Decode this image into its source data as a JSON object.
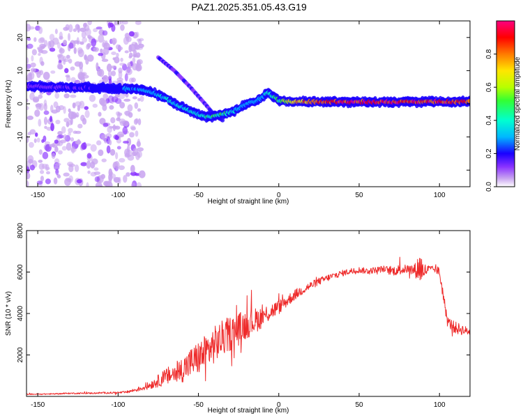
{
  "figure_title": "PAZ1.2025.351.05.43.G19",
  "chart_data": [
    {
      "type": "heatmap",
      "name": "spectrogram",
      "title": "PAZ1.2025.351.05.43.G19",
      "xlabel": "Height of straight line (km)",
      "ylabel": "Frequency (Hz)",
      "xlim": [
        -157,
        119
      ],
      "ylim": [
        -25,
        25
      ],
      "xticks": [
        -150,
        -100,
        -50,
        0,
        50,
        100
      ],
      "yticks": [
        -20,
        -10,
        0,
        10,
        20
      ],
      "colorbar": {
        "label": "Normalized spectral amplitude",
        "range": [
          0,
          1
        ],
        "ticks": [
          "0.0",
          "0.2",
          "0.4",
          "0.6",
          "0.8"
        ],
        "colors": [
          "#ffffff",
          "#c9a5f0",
          "#8a33ff",
          "#1a00ff",
          "#00b8ff",
          "#00ffd0",
          "#33ff33",
          "#b8ff00",
          "#ffe600",
          "#ff7a00",
          "#ff0000",
          "#ff0080"
        ]
      },
      "ridge": {
        "x": [
          -157,
          -140,
          -120,
          -100,
          -90,
          -80,
          -70,
          -60,
          -50,
          -44,
          -40,
          -36,
          -30,
          -25,
          -20,
          -15,
          -10,
          -7,
          -4,
          0,
          5,
          10,
          20,
          40,
          60,
          80,
          100,
          119
        ],
        "freq": [
          5.5,
          5.0,
          5.0,
          4.5,
          4.5,
          3.8,
          1.5,
          -1.0,
          -3.2,
          -4.0,
          -3.8,
          -3.3,
          -2.6,
          -1.5,
          0.0,
          0.6,
          2.0,
          3.5,
          2.5,
          1.0,
          0.8,
          0.6,
          0.6,
          0.6,
          0.6,
          0.6,
          0.6,
          0.6
        ],
        "amplitude": [
          0.2,
          0.22,
          0.25,
          0.3,
          0.35,
          0.38,
          0.42,
          0.45,
          0.45,
          0.48,
          0.52,
          0.55,
          0.45,
          0.38,
          0.38,
          0.4,
          0.4,
          0.45,
          0.5,
          0.55,
          0.65,
          0.75,
          0.88,
          0.95,
          0.95,
          0.95,
          0.95,
          0.92
        ]
      },
      "secondary_arc": {
        "x": [
          -75,
          -65,
          -55,
          -45,
          -40,
          -35
        ],
        "freq": [
          14.0,
          10.0,
          5.0,
          -0.5,
          -3.5,
          -5.0
        ]
      }
    },
    {
      "type": "line",
      "name": "snr",
      "title": "",
      "xlabel": "Height of straight line (km)",
      "ylabel": "SNR (10 * v/v)",
      "xlim": [
        -157,
        119
      ],
      "ylim": [
        0,
        8000
      ],
      "xticks": [
        -150,
        -100,
        -50,
        0,
        50,
        100
      ],
      "yticks": [
        2000,
        4000,
        6000,
        8000
      ],
      "color": "#ee2b2b",
      "x": [
        -157,
        -140,
        -130,
        -120,
        -110,
        -100,
        -95,
        -90,
        -85,
        -80,
        -75,
        -70,
        -65,
        -60,
        -55,
        -50,
        -45,
        -40,
        -35,
        -30,
        -25,
        -20,
        -15,
        -10,
        -5,
        0,
        5,
        10,
        15,
        20,
        25,
        30,
        35,
        40,
        45,
        50,
        55,
        60,
        65,
        70,
        75,
        80,
        85,
        88,
        90,
        95,
        98,
        100,
        105,
        110,
        115,
        119
      ],
      "y": [
        100,
        120,
        150,
        150,
        170,
        180,
        200,
        300,
        400,
        550,
        750,
        950,
        1100,
        1300,
        1600,
        1850,
        2150,
        2500,
        2800,
        3050,
        3250,
        3500,
        3650,
        3850,
        4100,
        4300,
        4600,
        4900,
        5150,
        5350,
        5550,
        5700,
        5850,
        5950,
        6050,
        6100,
        6050,
        6100,
        6150,
        6050,
        6100,
        6150,
        6100,
        6250,
        6050,
        6150,
        6100,
        6000,
        3600,
        3300,
        3200,
        3100
      ],
      "noise_amplitude": [
        25,
        30,
        35,
        35,
        40,
        45,
        60,
        90,
        130,
        200,
        300,
        420,
        520,
        620,
        750,
        820,
        880,
        900,
        880,
        850,
        800,
        720,
        620,
        520,
        420,
        350,
        300,
        260,
        230,
        200,
        180,
        170,
        160,
        150,
        150,
        150,
        150,
        150,
        160,
        220,
        260,
        200,
        350,
        900,
        400,
        150,
        150,
        300,
        250,
        300,
        250,
        150
      ]
    }
  ]
}
